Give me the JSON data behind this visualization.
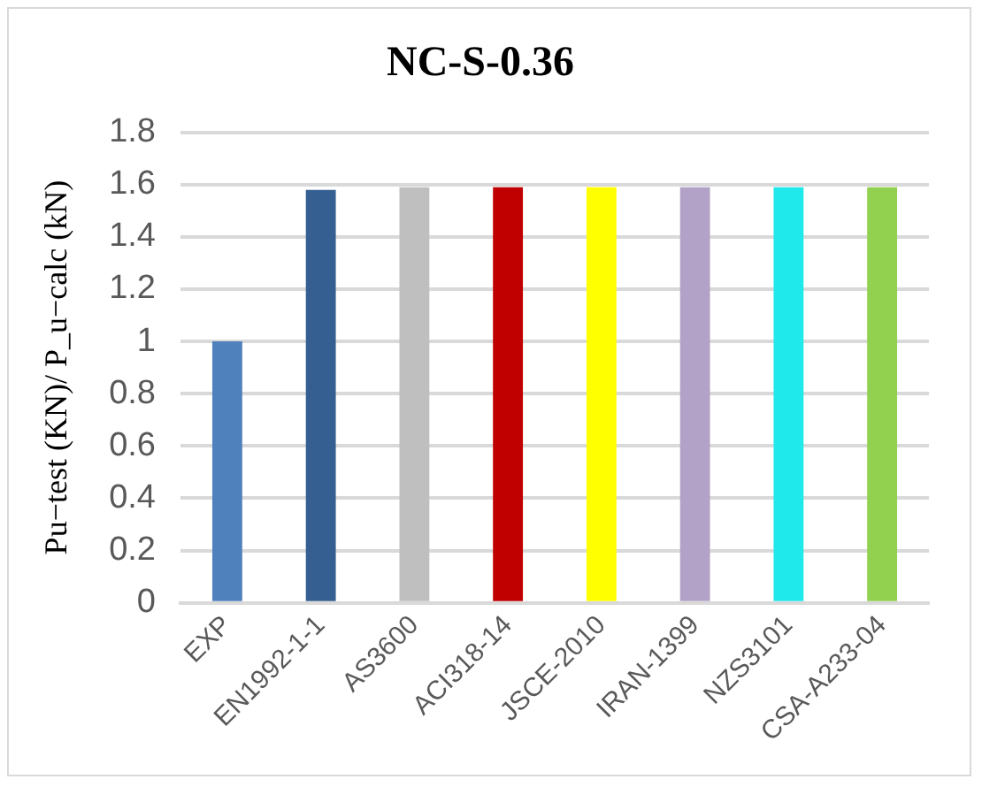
{
  "chart_data": {
    "type": "bar",
    "title": "NC-S-0.36",
    "ylabel": "Pu−test (KN)/ P_u−calc (kN)",
    "categories": [
      "EXP",
      "EN1992-1-1",
      "AS3600",
      "ACI318-14",
      "JSCE-2010",
      "IRAN-1399",
      "NZS3101",
      "CSA-A233-04"
    ],
    "values": [
      1.0,
      1.58,
      1.59,
      1.59,
      1.59,
      1.59,
      1.59,
      1.59
    ],
    "colors": [
      "#4f81bd",
      "#355f91",
      "#bfbfbf",
      "#c00000",
      "#ffff00",
      "#b3a2c7",
      "#1fe9ea",
      "#92d050"
    ],
    "ylim": [
      0,
      1.8
    ],
    "yticks": [
      0,
      0.2,
      0.4,
      0.6,
      0.8,
      1,
      1.2,
      1.4,
      1.6,
      1.8
    ],
    "grid": "y",
    "legend": false
  }
}
